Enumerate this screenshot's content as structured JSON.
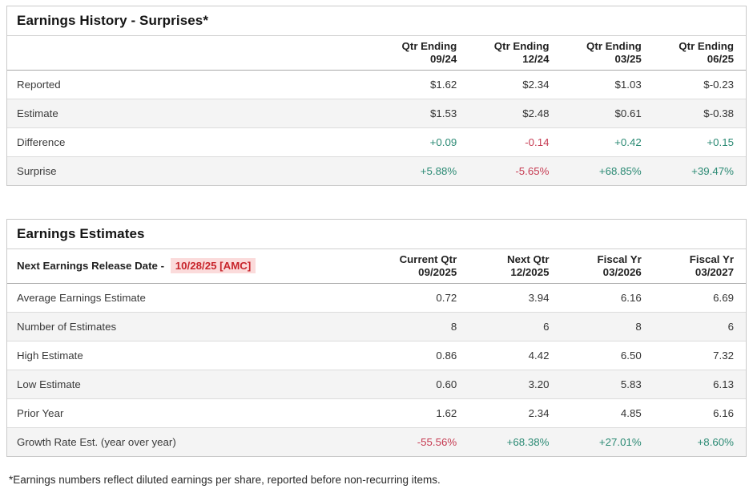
{
  "colors": {
    "positive_text": "#2b8a74",
    "negative_text": "#c63b52",
    "highlight_bg": "#fbdbdb",
    "highlight_text": "#c8252c",
    "row_alt_bg": "#f4f4f4",
    "border": "#c9c9c9"
  },
  "history": {
    "title": "Earnings History - Surprises*",
    "columns": [
      {
        "line1": "Qtr Ending",
        "line2": "09/24"
      },
      {
        "line1": "Qtr Ending",
        "line2": "12/24"
      },
      {
        "line1": "Qtr Ending",
        "line2": "03/25"
      },
      {
        "line1": "Qtr Ending",
        "line2": "06/25"
      }
    ],
    "rows": [
      {
        "label": "Reported",
        "values": [
          "$1.62",
          "$2.34",
          "$1.03",
          "$-0.23"
        ]
      },
      {
        "label": "Estimate",
        "values": [
          "$1.53",
          "$2.48",
          "$0.61",
          "$-0.38"
        ]
      },
      {
        "label": "Difference",
        "values": [
          "+0.09",
          "-0.14",
          "+0.42",
          "+0.15"
        ]
      },
      {
        "label": "Surprise",
        "values": [
          "+5.88%",
          "-5.65%",
          "+68.85%",
          "+39.47%"
        ]
      }
    ]
  },
  "estimates": {
    "title": "Earnings Estimates",
    "release_label": "Next Earnings Release Date -",
    "release_date": "10/28/25 [AMC]",
    "columns": [
      {
        "line1": "Current Qtr",
        "line2": "09/2025"
      },
      {
        "line1": "Next Qtr",
        "line2": "12/2025"
      },
      {
        "line1": "Fiscal Yr",
        "line2": "03/2026"
      },
      {
        "line1": "Fiscal Yr",
        "line2": "03/2027"
      }
    ],
    "rows": [
      {
        "label": "Average Earnings Estimate",
        "values": [
          "0.72",
          "3.94",
          "6.16",
          "6.69"
        ]
      },
      {
        "label": "Number of Estimates",
        "values": [
          "8",
          "6",
          "8",
          "6"
        ]
      },
      {
        "label": "High Estimate",
        "values": [
          "0.86",
          "4.42",
          "6.50",
          "7.32"
        ]
      },
      {
        "label": "Low Estimate",
        "values": [
          "0.60",
          "3.20",
          "5.83",
          "6.13"
        ]
      },
      {
        "label": "Prior Year",
        "values": [
          "1.62",
          "2.34",
          "4.85",
          "6.16"
        ]
      },
      {
        "label": "Growth Rate Est. (year over year)",
        "values": [
          "-55.56%",
          "+68.38%",
          "+27.01%",
          "+8.60%"
        ]
      }
    ]
  },
  "footnote": "*Earnings numbers reflect diluted earnings per share, reported before non-recurring items."
}
